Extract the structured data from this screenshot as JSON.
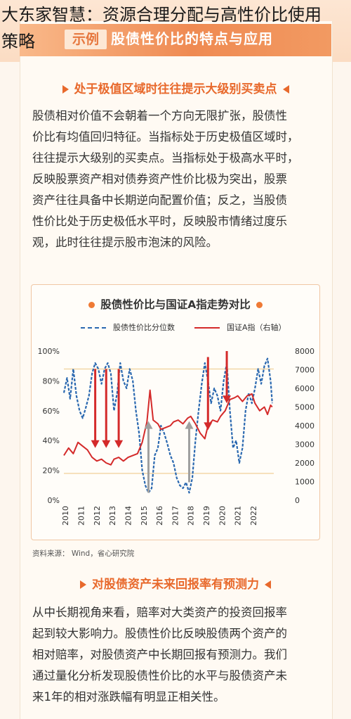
{
  "overlay": {
    "line1": "大东家智慧：资源合理分配与高性价比使用",
    "line2": "策略"
  },
  "banner": {
    "tag": "示例",
    "title": "股债性价比的特点与应用"
  },
  "section1": {
    "heading": "处于极值区域时往往提示大级别买卖点",
    "lines": [
      "股债相对价值不会朝着一个方向无限扩张，股债性",
      "价比有均值回归特征。当指标处于历史极值区域时，",
      "往往提示大级别的买卖点。当指标处于极高水平时，",
      "反映股票资产相对债券资产性价比极为突出，股票",
      "资产往往具备中长期逆向配置价值；反之，当股债",
      "性价比处于历史极低水平时，反映股市情绪过度乐",
      "观，此时往往提示股市泡沫的风险。"
    ]
  },
  "chart": {
    "title": "股债性价比与国证A指走势对比",
    "source": "资料来源：   Wind，省心研究院"
  },
  "chart_data": {
    "type": "line",
    "title": "股债性价比与国证A指走势对比",
    "legend_placement": "top",
    "series": [
      {
        "name": "股债性价比分位数",
        "axis": "left",
        "style": "dashed",
        "color": "#2a68b0",
        "points": [
          [
            2009.9,
            72
          ],
          [
            2010.1,
            82
          ],
          [
            2010.3,
            68
          ],
          [
            2010.5,
            88
          ],
          [
            2010.7,
            70
          ],
          [
            2010.9,
            60
          ],
          [
            2011.1,
            55
          ],
          [
            2011.3,
            62
          ],
          [
            2011.5,
            70
          ],
          [
            2011.7,
            85
          ],
          [
            2011.9,
            92
          ],
          [
            2012.1,
            88
          ],
          [
            2012.3,
            78
          ],
          [
            2012.5,
            88
          ],
          [
            2012.7,
            92
          ],
          [
            2012.9,
            85
          ],
          [
            2013.1,
            60
          ],
          [
            2013.3,
            72
          ],
          [
            2013.5,
            92
          ],
          [
            2013.7,
            80
          ],
          [
            2013.9,
            75
          ],
          [
            2014.1,
            88
          ],
          [
            2014.3,
            80
          ],
          [
            2014.5,
            60
          ],
          [
            2014.7,
            45
          ],
          [
            2014.9,
            20
          ],
          [
            2015.1,
            10
          ],
          [
            2015.3,
            5
          ],
          [
            2015.5,
            8
          ],
          [
            2015.7,
            30
          ],
          [
            2015.9,
            35
          ],
          [
            2016.1,
            50
          ],
          [
            2016.3,
            45
          ],
          [
            2016.5,
            38
          ],
          [
            2016.7,
            30
          ],
          [
            2016.9,
            25
          ],
          [
            2017.1,
            15
          ],
          [
            2017.3,
            10
          ],
          [
            2017.5,
            8
          ],
          [
            2017.7,
            12
          ],
          [
            2017.9,
            5
          ],
          [
            2018.1,
            15
          ],
          [
            2018.3,
            40
          ],
          [
            2018.5,
            60
          ],
          [
            2018.7,
            78
          ],
          [
            2018.9,
            92
          ],
          [
            2019.1,
            80
          ],
          [
            2019.3,
            65
          ],
          [
            2019.5,
            75
          ],
          [
            2019.7,
            70
          ],
          [
            2019.9,
            60
          ],
          [
            2020.1,
            80
          ],
          [
            2020.3,
            92
          ],
          [
            2020.5,
            60
          ],
          [
            2020.7,
            35
          ],
          [
            2020.9,
            40
          ],
          [
            2021.1,
            25
          ],
          [
            2021.3,
            35
          ],
          [
            2021.5,
            60
          ],
          [
            2021.7,
            72
          ],
          [
            2021.9,
            65
          ],
          [
            2022.1,
            75
          ],
          [
            2022.3,
            88
          ],
          [
            2022.5,
            78
          ],
          [
            2022.7,
            90
          ],
          [
            2022.9,
            95
          ],
          [
            2023.1,
            80
          ],
          [
            2023.2,
            65
          ]
        ]
      },
      {
        "name": "国证A指（右轴）",
        "axis": "right",
        "style": "solid",
        "color": "#d42a2a",
        "points": [
          [
            2009.9,
            2400
          ],
          [
            2010.2,
            2800
          ],
          [
            2010.5,
            2500
          ],
          [
            2010.8,
            3100
          ],
          [
            2011.1,
            2900
          ],
          [
            2011.4,
            2700
          ],
          [
            2011.7,
            2300
          ],
          [
            2012.0,
            2100
          ],
          [
            2012.3,
            2200
          ],
          [
            2012.6,
            2000
          ],
          [
            2012.9,
            1900
          ],
          [
            2013.1,
            2200
          ],
          [
            2013.4,
            2300
          ],
          [
            2013.7,
            2100
          ],
          [
            2014.0,
            2300
          ],
          [
            2014.3,
            2400
          ],
          [
            2014.6,
            2500
          ],
          [
            2014.9,
            3100
          ],
          [
            2015.2,
            4200
          ],
          [
            2015.4,
            5900
          ],
          [
            2015.6,
            4300
          ],
          [
            2015.9,
            4100
          ],
          [
            2016.1,
            3800
          ],
          [
            2016.4,
            3900
          ],
          [
            2016.7,
            4000
          ],
          [
            2016.9,
            4200
          ],
          [
            2017.2,
            4300
          ],
          [
            2017.5,
            4100
          ],
          [
            2017.8,
            4400
          ],
          [
            2018.0,
            4500
          ],
          [
            2018.3,
            4100
          ],
          [
            2018.6,
            3600
          ],
          [
            2018.9,
            3300
          ],
          [
            2019.1,
            4000
          ],
          [
            2019.4,
            4300
          ],
          [
            2019.7,
            4200
          ],
          [
            2019.9,
            4500
          ],
          [
            2020.2,
            4800
          ],
          [
            2020.5,
            5400
          ],
          [
            2020.8,
            5500
          ],
          [
            2021.0,
            5600
          ],
          [
            2021.3,
            5300
          ],
          [
            2021.6,
            5600
          ],
          [
            2021.9,
            5700
          ],
          [
            2022.1,
            5200
          ],
          [
            2022.4,
            4800
          ],
          [
            2022.7,
            5000
          ],
          [
            2022.9,
            4600
          ],
          [
            2023.1,
            5100
          ],
          [
            2023.2,
            5000
          ]
        ]
      }
    ],
    "annotations": [
      {
        "type": "arrow-down",
        "color": "#d42a2a",
        "x": 2011.9,
        "from": 88,
        "to": 35
      },
      {
        "type": "arrow-down",
        "color": "#d42a2a",
        "x": 2012.6,
        "from": 88,
        "to": 35
      },
      {
        "type": "arrow-down",
        "color": "#d42a2a",
        "x": 2013.4,
        "from": 88,
        "to": 35
      },
      {
        "type": "arrow-up",
        "color": "#a0a0a0",
        "x": 2015.3,
        "from": 5,
        "to": 53
      },
      {
        "type": "arrow-up",
        "color": "#a0a0a0",
        "x": 2017.9,
        "from": 12,
        "to": 53
      },
      {
        "type": "arrow-down",
        "color": "#d42a2a",
        "x": 2019.1,
        "from": 96,
        "to": 47
      },
      {
        "type": "arrow-down",
        "color": "#d42a2a",
        "x": 2020.3,
        "from": 100,
        "to": 65
      }
    ],
    "reference_lines": [
      {
        "axis": "left",
        "value": 88,
        "color": "#f3d7a8"
      },
      {
        "axis": "left",
        "value": 18,
        "color": "#f3d7a8"
      }
    ],
    "x_ticks": [
      "2010",
      "2011",
      "2012",
      "2013",
      "2014",
      "2015",
      "2016",
      "2017",
      "2018",
      "2019",
      "2020",
      "2021",
      "2022"
    ],
    "x_range": [
      2009.9,
      2023.3
    ],
    "y_left_ticks": [
      "0%",
      "20%",
      "40%",
      "60%",
      "80%",
      "100%"
    ],
    "y_left_range": [
      0,
      100
    ],
    "y_right_ticks": [
      "0",
      "1000",
      "2000",
      "3000",
      "4000",
      "5000",
      "6000",
      "7000",
      "8000"
    ],
    "y_right_range": [
      0,
      8000
    ],
    "grid": false
  },
  "section2": {
    "heading": "对股债资产未来回报率有预测力",
    "lines": [
      "从中长期视角来看，赔率对大类资产的投资回报率",
      "起到较大影响力。股债性价比反映股债两个资产的",
      "相对赔率，对股债资产中长期回报有预测力。我们",
      "通过量化分析发现股债性价比的水平与股债资产未",
      "来1年的相对涨跌幅有明显正相关性。"
    ]
  }
}
